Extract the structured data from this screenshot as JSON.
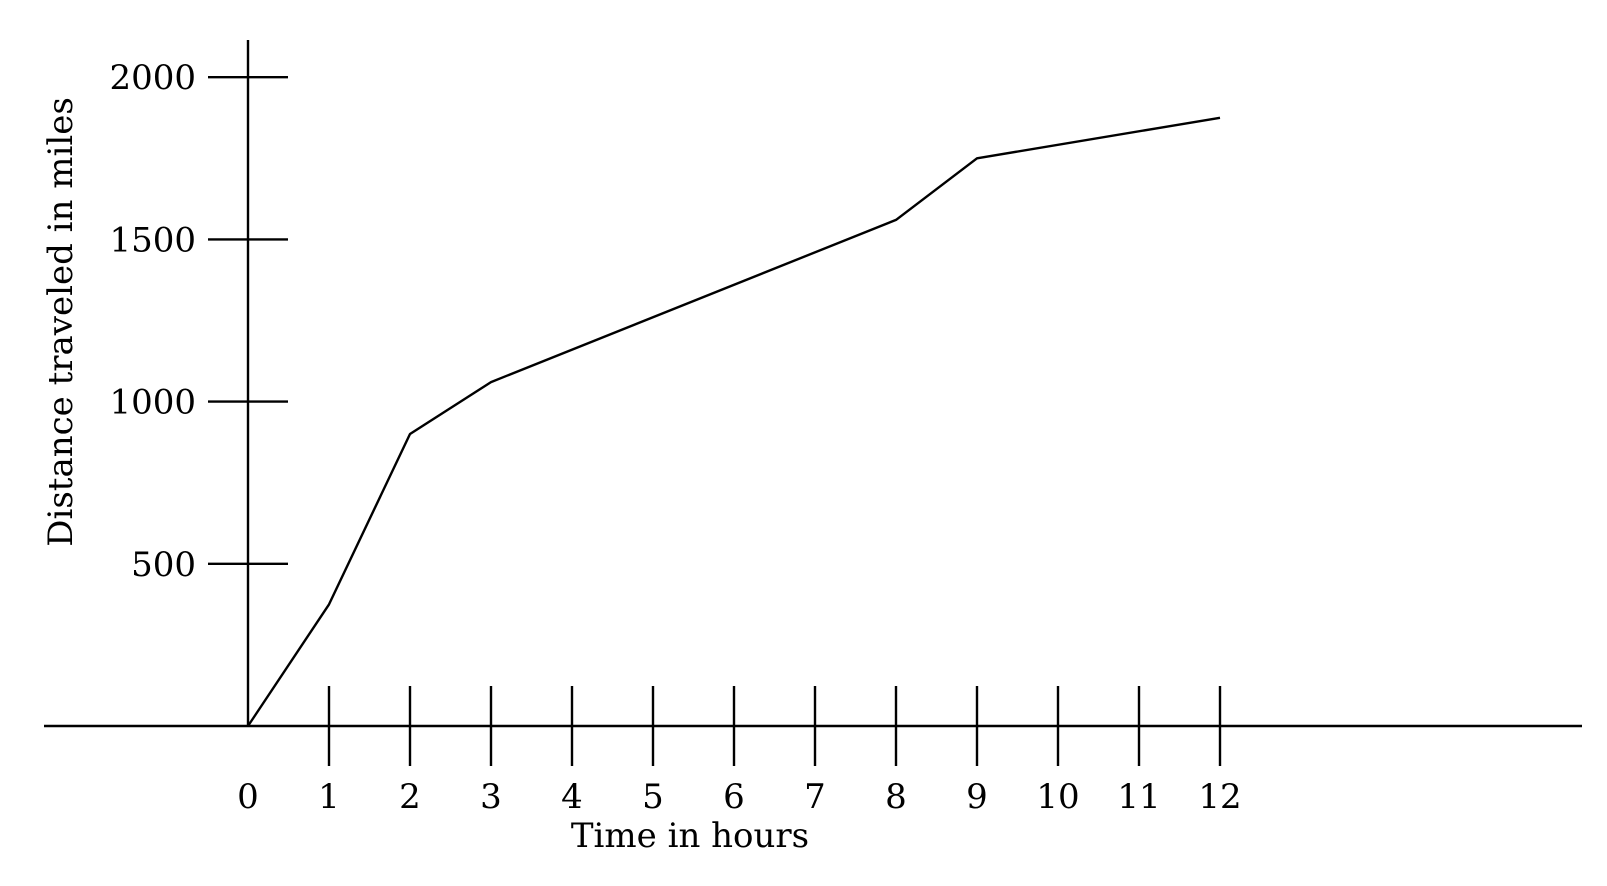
{
  "chart_data": {
    "type": "line",
    "title": "",
    "xlabel": "Time in hours",
    "ylabel": "Distance traveled in miles",
    "xlim": [
      0,
      12
    ],
    "ylim": [
      0,
      2000
    ],
    "x_ticks": [
      "0",
      "1",
      "2",
      "3",
      "4",
      "5",
      "6",
      "7",
      "8",
      "9",
      "10",
      "11",
      "12"
    ],
    "y_ticks": [
      "500",
      "1000",
      "1500",
      "2000"
    ],
    "grid": false,
    "series": [
      {
        "x": [
          0,
          1,
          2,
          3,
          8,
          9,
          12
        ],
        "y": [
          0,
          375,
          900,
          1060,
          1560,
          1750,
          1875
        ]
      }
    ],
    "colors": {
      "line": "#000000",
      "background": "#ffffff"
    }
  }
}
